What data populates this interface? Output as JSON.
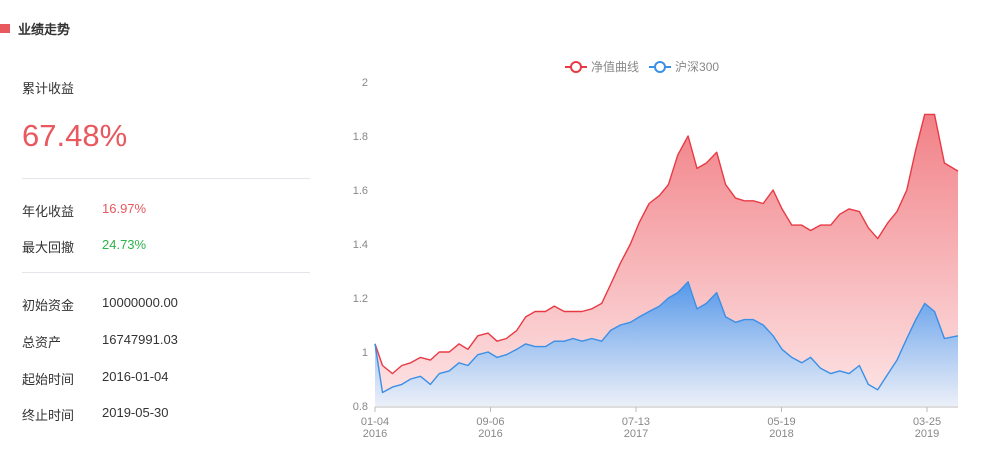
{
  "header": {
    "title": "业绩走势"
  },
  "summary": {
    "cumulative_label": "累计收益",
    "cumulative_value": "67.48%",
    "annual_label": "年化收益",
    "annual_value": "16.97%",
    "drawdown_label": "最大回撤",
    "drawdown_value": "24.73%",
    "init_capital_label": "初始资金",
    "init_capital_value": "10000000.00",
    "total_assets_label": "总资产",
    "total_assets_value": "16747991.03",
    "start_label": "起始时间",
    "start_value": "2016-01-04",
    "end_label": "终止时间",
    "end_value": "2019-05-30"
  },
  "colors": {
    "accent": "#e8585e",
    "positive": "#2db34a",
    "nav": "#e83a45",
    "index": "#3a8fe6"
  },
  "chart_data": {
    "type": "area",
    "title": "",
    "xlabel": "",
    "ylabel": "",
    "ylim": [
      0.8,
      2.0
    ],
    "yticks": [
      "2",
      "1.8",
      "1.6",
      "1.4",
      "1.2",
      "1",
      "0.8"
    ],
    "grid": false,
    "legend_position": "top-center",
    "x_ticks": [
      {
        "date": "2016-01-04",
        "label": "01-04",
        "year": "2016"
      },
      {
        "date": "2016-09-06",
        "label": "09-06",
        "year": "2016"
      },
      {
        "date": "2017-07-13",
        "label": "07-13",
        "year": "2017"
      },
      {
        "date": "2018-05-19",
        "label": "05-19",
        "year": "2018"
      },
      {
        "date": "2019-03-25",
        "label": "03-25",
        "year": "2019"
      }
    ],
    "x": [
      "2016-01-04",
      "2016-01-20",
      "2016-02-10",
      "2016-03-01",
      "2016-03-20",
      "2016-04-10",
      "2016-05-01",
      "2016-05-20",
      "2016-06-10",
      "2016-07-01",
      "2016-07-20",
      "2016-08-10",
      "2016-09-01",
      "2016-09-20",
      "2016-10-10",
      "2016-11-01",
      "2016-11-20",
      "2016-12-10",
      "2017-01-01",
      "2017-01-20",
      "2017-02-10",
      "2017-03-01",
      "2017-03-20",
      "2017-04-10",
      "2017-05-01",
      "2017-05-20",
      "2017-06-10",
      "2017-07-01",
      "2017-07-20",
      "2017-08-10",
      "2017-09-01",
      "2017-09-20",
      "2017-10-10",
      "2017-11-01",
      "2017-11-20",
      "2017-12-10",
      "2018-01-01",
      "2018-01-20",
      "2018-02-10",
      "2018-03-01",
      "2018-03-20",
      "2018-04-10",
      "2018-05-01",
      "2018-05-20",
      "2018-06-10",
      "2018-07-01",
      "2018-07-20",
      "2018-08-10",
      "2018-09-01",
      "2018-09-20",
      "2018-10-10",
      "2018-11-01",
      "2018-11-20",
      "2018-12-10",
      "2019-01-01",
      "2019-01-20",
      "2019-02-10",
      "2019-03-01",
      "2019-03-20",
      "2019-04-10",
      "2019-05-01",
      "2019-05-30"
    ],
    "series": [
      {
        "name": "净值曲线",
        "values": [
          1.03,
          0.95,
          0.92,
          0.95,
          0.96,
          0.98,
          0.97,
          1.0,
          1.0,
          1.03,
          1.01,
          1.06,
          1.07,
          1.04,
          1.05,
          1.08,
          1.13,
          1.15,
          1.15,
          1.17,
          1.15,
          1.15,
          1.15,
          1.16,
          1.18,
          1.25,
          1.33,
          1.4,
          1.48,
          1.55,
          1.58,
          1.62,
          1.73,
          1.8,
          1.68,
          1.7,
          1.74,
          1.62,
          1.57,
          1.56,
          1.56,
          1.55,
          1.6,
          1.53,
          1.47,
          1.47,
          1.45,
          1.47,
          1.47,
          1.51,
          1.53,
          1.52,
          1.46,
          1.42,
          1.48,
          1.52,
          1.6,
          1.75,
          1.88,
          1.88,
          1.7,
          1.67
        ]
      },
      {
        "name": "沪深300",
        "values": [
          1.03,
          0.85,
          0.87,
          0.88,
          0.9,
          0.91,
          0.88,
          0.92,
          0.93,
          0.96,
          0.95,
          0.99,
          1.0,
          0.98,
          0.99,
          1.01,
          1.03,
          1.02,
          1.02,
          1.04,
          1.04,
          1.05,
          1.04,
          1.05,
          1.04,
          1.08,
          1.1,
          1.11,
          1.13,
          1.15,
          1.17,
          1.2,
          1.22,
          1.26,
          1.16,
          1.18,
          1.22,
          1.13,
          1.11,
          1.12,
          1.12,
          1.1,
          1.06,
          1.01,
          0.98,
          0.96,
          0.98,
          0.94,
          0.92,
          0.93,
          0.92,
          0.95,
          0.88,
          0.86,
          0.92,
          0.97,
          1.05,
          1.12,
          1.18,
          1.15,
          1.05,
          1.06
        ]
      }
    ]
  }
}
